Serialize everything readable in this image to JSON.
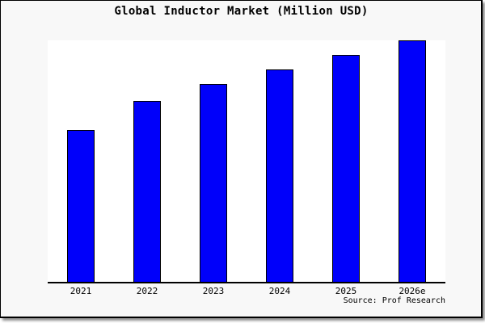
{
  "frame": {
    "background": "#f8f8f8",
    "border_color": "#000000"
  },
  "chart_data": {
    "type": "bar",
    "title": "Global Inductor Market (Million USD)",
    "categories": [
      "2021",
      "2022",
      "2023",
      "2024",
      "2025",
      "2026e"
    ],
    "values": [
      63,
      75,
      82,
      88,
      94,
      100
    ],
    "value_basis": "relative units estimated from bar heights; no y-axis ticks or gridlines are shown (100 = tallest bar, 2026e)",
    "xlabel": "",
    "ylabel": "",
    "ylim": [
      0,
      100
    ],
    "grid": false,
    "legend": false,
    "bar_color": "#0000fa",
    "bar_edge_color": "#000000",
    "plot_background": "#ffffff",
    "axis_color": "#000000"
  },
  "footer": {
    "source_label": "Source: Prof Research"
  }
}
